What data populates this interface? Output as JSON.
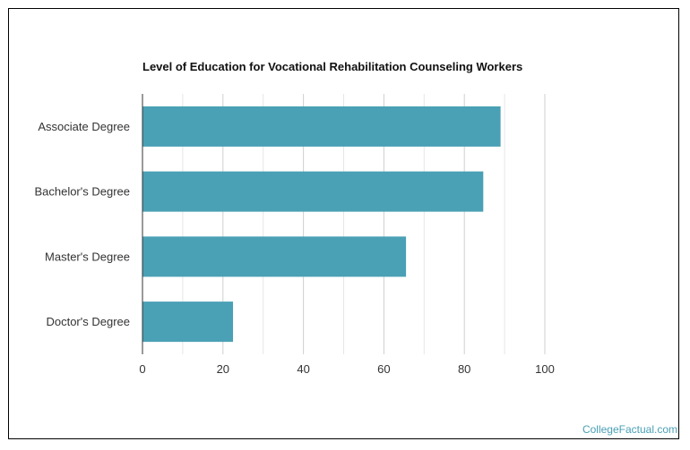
{
  "chart_data": {
    "type": "bar",
    "orientation": "horizontal",
    "title": "Level of Education for Vocational Rehabilitation Counseling Workers",
    "categories": [
      "Associate Degree",
      "Bachelor's Degree",
      "Master's Degree",
      "Doctor's Degree"
    ],
    "values": [
      89,
      84.7,
      65.5,
      22.5
    ],
    "xlim": [
      0,
      100
    ],
    "xticks": [
      0,
      20,
      40,
      60,
      80,
      100
    ],
    "xlabel": "",
    "ylabel": "",
    "grid": true,
    "legend": "none",
    "bar_color": "#4aa0b5"
  },
  "watermark": "CollegeFactual.com"
}
